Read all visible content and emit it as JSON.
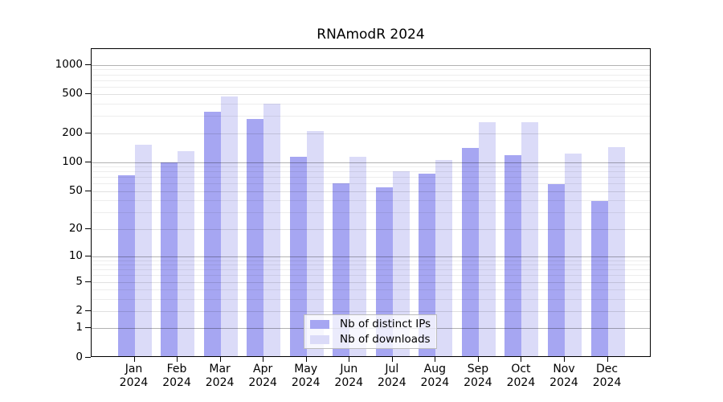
{
  "title": "RNAmodR 2024",
  "legend": {
    "items": [
      {
        "label": "Nb of distinct IPs",
        "color": "#a6a6f2"
      },
      {
        "label": "Nb of downloads",
        "color": "#dbdbf8"
      }
    ]
  },
  "chart_data": {
    "type": "bar",
    "title": "RNAmodR 2024",
    "categories": [
      "Jan 2024",
      "Feb 2024",
      "Mar 2024",
      "Apr 2024",
      "May 2024",
      "Jun 2024",
      "Jul 2024",
      "Aug 2024",
      "Sep 2024",
      "Oct 2024",
      "Nov 2024",
      "Dec 2024"
    ],
    "series": [
      {
        "name": "Nb of distinct IPs",
        "color": "#a6a6f2",
        "values": [
          70,
          95,
          319,
          267,
          110,
          58,
          53,
          73,
          135,
          115,
          57,
          38
        ]
      },
      {
        "name": "Nb of downloads",
        "color": "#dbdbf8",
        "values": [
          145,
          125,
          460,
          388,
          201,
          110,
          77,
          101,
          247,
          247,
          118,
          137
        ]
      }
    ],
    "yscale": "log1p",
    "ylim": [
      0,
      1460
    ],
    "yticks": [
      0,
      1,
      2,
      5,
      10,
      20,
      50,
      100,
      200,
      500,
      1000
    ],
    "minor_gridlines": [
      3,
      4,
      6,
      7,
      8,
      9,
      30,
      40,
      60,
      70,
      80,
      90,
      300,
      400,
      600,
      700,
      800,
      900
    ],
    "xlabel": "",
    "ylabel": "",
    "grid": true,
    "legend_position": "inside-bottom-center",
    "axis_color": "#000000",
    "background": "#ffffff"
  }
}
